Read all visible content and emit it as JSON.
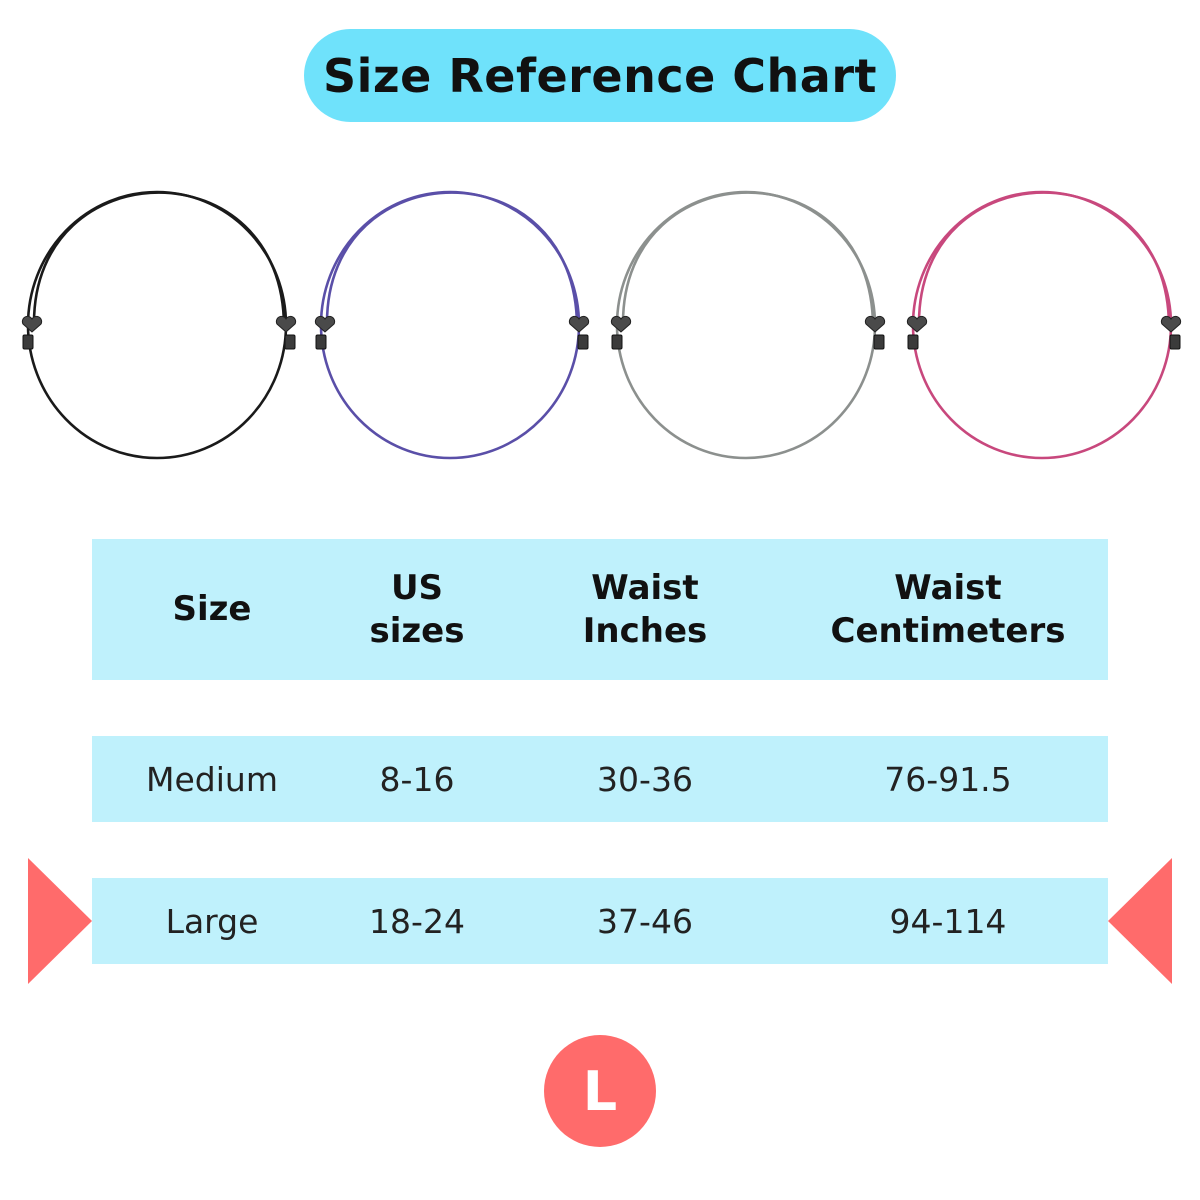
{
  "title": "Size Reference Chart",
  "bands": [
    {
      "name": "black",
      "color": "#1a1a1a"
    },
    {
      "name": "purple",
      "color": "#5a4fa8"
    },
    {
      "name": "gray",
      "color": "#8c908e"
    },
    {
      "name": "pink",
      "color": "#c8487d"
    }
  ],
  "table": {
    "headers": [
      [
        "Size"
      ],
      [
        "US",
        "sizes"
      ],
      [
        "Waist",
        "Inches"
      ],
      [
        "Waist",
        "Centimeters"
      ]
    ],
    "rows": [
      {
        "size": "Medium",
        "us_sizes": "8-16",
        "waist_in": "30-36",
        "waist_cm": "76-91.5"
      },
      {
        "size": "Large",
        "us_sizes": "18-24",
        "waist_in": "37-46",
        "waist_cm": "94-114"
      }
    ],
    "highlighted_row": "Large"
  },
  "badge": "L",
  "colors": {
    "title_pill": "#6fe2fb",
    "table_band": "#bff1fc",
    "accent": "#ff6b6b",
    "charm": "#4a4a4a"
  },
  "icons": [
    "heart-charm-icon",
    "slider-bead-icon",
    "arrow-right-marker-icon",
    "arrow-left-marker-icon"
  ]
}
